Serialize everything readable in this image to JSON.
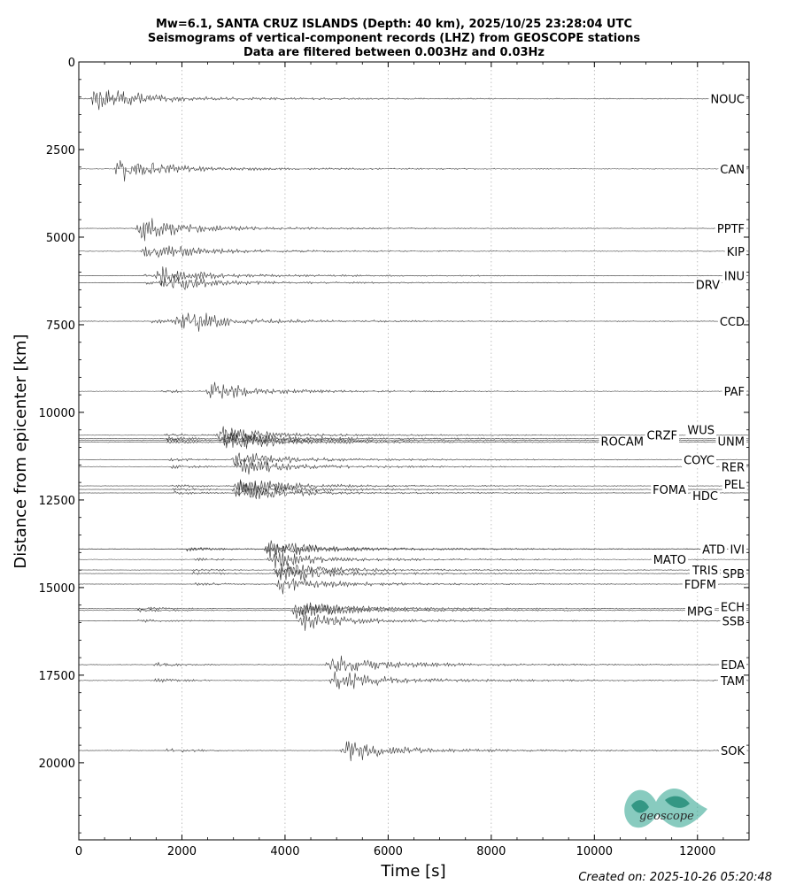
{
  "title_lines": [
    "Mw=6.1, SANTA CRUZ ISLANDS (Depth: 40 km), 2025/10/25 23:28:04 UTC",
    "Seismograms of vertical-component records (LHZ) from GEOSCOPE stations",
    "Data are filtered between 0.003Hz and 0.03Hz"
  ],
  "footer": {
    "created": "Created on: 2025-10-26 05:20:48"
  },
  "logo": {
    "text": "geoscope",
    "color": "#26a08a"
  },
  "colors": {
    "trace": "#333333",
    "grid": "#b0b0b0"
  },
  "chart_data": {
    "type": "line",
    "xlabel": "Time [s]",
    "ylabel": "Distance from epicenter [km]",
    "xlim": [
      0,
      13000
    ],
    "ylim": [
      22200,
      0
    ],
    "y_inverted": true,
    "xticks": [
      0,
      2000,
      4000,
      6000,
      8000,
      10000,
      12000
    ],
    "yticks": [
      0,
      2500,
      5000,
      7500,
      10000,
      12500,
      15000,
      17500,
      20000
    ],
    "x_minor_step": 500,
    "y_minor_step": 500,
    "grid": "vertical dotted at major x ticks",
    "stations": [
      {
        "name": "NOUC",
        "distance": 1050,
        "start": 0,
        "p": 320,
        "s": 330,
        "amp": 420,
        "label_side": "right"
      },
      {
        "name": "CAN",
        "distance": 3050,
        "start": 0,
        "p": 720,
        "s": 830,
        "amp": 380,
        "label_side": "right"
      },
      {
        "name": "PPTF",
        "distance": 4750,
        "start": 0,
        "p": 1130,
        "s": 1250,
        "amp": 360,
        "label_side": "right"
      },
      {
        "name": "KIP",
        "distance": 5400,
        "start": 0,
        "p": 1200,
        "s": 1380,
        "amp": 320,
        "label_side": "right"
      },
      {
        "name": "INU",
        "distance": 6100,
        "start": 0,
        "p": 1250,
        "s": 1600,
        "amp": 300,
        "label_side": "right"
      },
      {
        "name": "DRV",
        "distance": 6300,
        "start": 0,
        "p": 1300,
        "s": 1700,
        "amp": 300,
        "label_side": "left"
      },
      {
        "name": "CCD",
        "distance": 7400,
        "start": 0,
        "p": 1400,
        "s": 2000,
        "amp": 380,
        "label_side": "right"
      },
      {
        "name": "PAF",
        "distance": 9400,
        "start": 0,
        "p": 1600,
        "s": 2600,
        "amp": 300,
        "label_side": "right"
      },
      {
        "name": "WUS",
        "distance": 10650,
        "start": 0,
        "p": 1650,
        "s": 2800,
        "amp": 300,
        "label_side": "left"
      },
      {
        "name": "UNM",
        "distance": 10800,
        "start": 0,
        "p": 1700,
        "s": 2900,
        "amp": 320,
        "label_side": "right"
      },
      {
        "name": "CRZF",
        "distance": 10750,
        "start": 0,
        "p": 1700,
        "s": 2850,
        "amp": 300,
        "label_side": "left"
      },
      {
        "name": "ROCAM",
        "distance": 10850,
        "start": 0,
        "p": 1700,
        "s": 2950,
        "amp": 300,
        "label_side": "left"
      },
      {
        "name": "COYC",
        "distance": 11350,
        "start": 0,
        "p": 1750,
        "s": 3050,
        "amp": 300,
        "label_side": "left"
      },
      {
        "name": "RER",
        "distance": 11550,
        "start": 0,
        "p": 1780,
        "s": 3150,
        "amp": 300,
        "label_side": "right"
      },
      {
        "name": "PEL",
        "distance": 12100,
        "start": 0,
        "p": 1800,
        "s": 3150,
        "amp": 300,
        "label_side": "right"
      },
      {
        "name": "FOMA",
        "distance": 12200,
        "start": 0,
        "p": 1820,
        "s": 3100,
        "amp": 300,
        "label_side": "left"
      },
      {
        "name": "HDC",
        "distance": 12300,
        "start": 0,
        "p": 1850,
        "s": 3200,
        "amp": 300,
        "label_side": "left"
      },
      {
        "name": "ATD",
        "distance": 13900,
        "start": 0,
        "p": 2100,
        "s": 3700,
        "amp": 320,
        "label_side": "left"
      },
      {
        "name": "IVI",
        "distance": 13900,
        "start": 0,
        "p": 2100,
        "s": 3750,
        "amp": 320,
        "label_side": "right"
      },
      {
        "name": "MATO",
        "distance": 14200,
        "start": 0,
        "p": 2150,
        "s": 3800,
        "amp": 300,
        "label_side": "left"
      },
      {
        "name": "TRIS",
        "distance": 14500,
        "start": 0,
        "p": 2200,
        "s": 3900,
        "amp": 300,
        "label_side": "left"
      },
      {
        "name": "SPB",
        "distance": 14600,
        "start": 0,
        "p": 2200,
        "s": 3950,
        "amp": 300,
        "label_side": "right"
      },
      {
        "name": "FDFM",
        "distance": 14900,
        "start": 0,
        "p": 2250,
        "s": 3950,
        "amp": 300,
        "label_side": "left"
      },
      {
        "name": "ECH",
        "distance": 15600,
        "start": 0,
        "p": 1150,
        "s": 4300,
        "amp": 320,
        "label_side": "right"
      },
      {
        "name": "MPG",
        "distance": 15650,
        "start": 0,
        "p": 1150,
        "s": 4250,
        "amp": 300,
        "label_side": "left"
      },
      {
        "name": "SSB",
        "distance": 15950,
        "start": 0,
        "p": 1150,
        "s": 4400,
        "amp": 320,
        "label_side": "right"
      },
      {
        "name": "EDA",
        "distance": 17200,
        "start": 0,
        "p": 1450,
        "s": 4900,
        "amp": 380,
        "label_side": "right"
      },
      {
        "name": "TAM",
        "distance": 17650,
        "start": 0,
        "p": 1450,
        "s": 5000,
        "amp": 380,
        "label_side": "right"
      },
      {
        "name": "SOK",
        "distance": 19650,
        "start": 0,
        "p": 1700,
        "s": 5200,
        "amp": 380,
        "label_side": "right"
      }
    ]
  }
}
